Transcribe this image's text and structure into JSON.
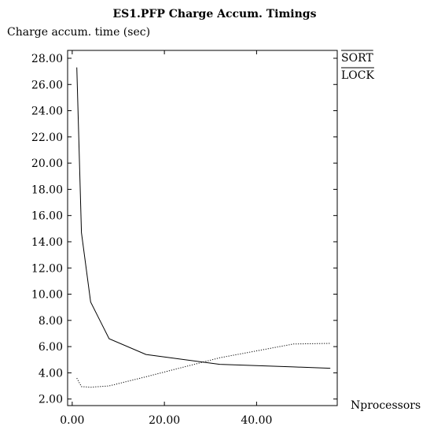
{
  "chart_data": {
    "type": "line",
    "title": "ES1.PFP Charge Accum. Timings",
    "ylabel": "Charge accum. time (sec)",
    "xlabel": "Nprocessors",
    "xlim": [
      -1,
      57.5
    ],
    "ylim": [
      1.5,
      28.6
    ],
    "xticks": [
      0,
      20,
      40
    ],
    "xtick_labels": [
      "0.00",
      "20.00",
      "40.00"
    ],
    "yticks": [
      2,
      4,
      6,
      8,
      10,
      12,
      14,
      16,
      18,
      20,
      22,
      24,
      26,
      28
    ],
    "ytick_labels": [
      "2.00",
      "4.00",
      "6.00",
      "8.00",
      "10.00",
      "12.00",
      "14.00",
      "16.00",
      "18.00",
      "20.00",
      "22.00",
      "24.00",
      "26.00",
      "28.00"
    ],
    "grid": false,
    "legend_position": "top-right",
    "series": [
      {
        "name": "SORT",
        "style": "solid",
        "x": [
          1,
          2,
          4,
          8,
          16,
          32,
          48,
          56
        ],
        "y": [
          27.3,
          14.7,
          9.4,
          6.6,
          5.4,
          4.65,
          4.45,
          4.35
        ]
      },
      {
        "name": "LOCK",
        "style": "dotted",
        "x": [
          1,
          2,
          4,
          8,
          16,
          32,
          48,
          56
        ],
        "y": [
          3.6,
          2.95,
          2.9,
          3.0,
          3.7,
          5.15,
          6.2,
          6.25
        ]
      }
    ]
  },
  "colors": {
    "axis": "#000000",
    "background": "#ffffff"
  }
}
